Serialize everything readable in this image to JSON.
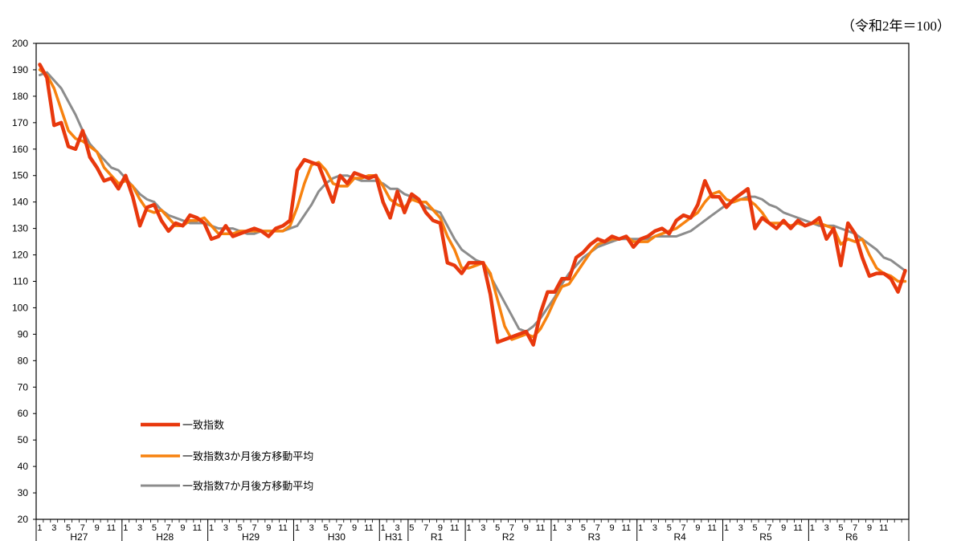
{
  "unit_note": "（令和2年＝100）",
  "chart_data": {
    "type": "line",
    "unit": "（令和2年＝100）",
    "ylim": [
      20,
      200
    ],
    "y_ticks": [
      20,
      30,
      40,
      50,
      60,
      70,
      80,
      90,
      100,
      110,
      120,
      130,
      140,
      150,
      160,
      170,
      180,
      190,
      200
    ],
    "month_ticks": [
      [
        "1",
        "3",
        "5",
        "7",
        "9",
        "11"
      ],
      [
        "1",
        "3",
        "5",
        "7",
        "9",
        "11"
      ],
      [
        "1",
        "3",
        "5",
        "7",
        "9",
        "11"
      ],
      [
        "1",
        "3",
        "5",
        "7",
        "9",
        "11"
      ],
      [
        "1",
        "3"
      ],
      [
        "5",
        "7",
        "9",
        "11"
      ],
      [
        "1",
        "3",
        "5",
        "7",
        "9",
        "11"
      ],
      [
        "1",
        "3",
        "5",
        "7",
        "9",
        "11"
      ],
      [
        "1",
        "3",
        "5",
        "7",
        "9",
        "11"
      ],
      [
        "1",
        "3",
        "5",
        "7",
        "9",
        "11"
      ],
      [
        "1",
        "3",
        "5",
        "7",
        "9",
        "11"
      ]
    ],
    "year_labels": [
      "H27",
      "H28",
      "H29",
      "H30",
      "H31",
      "R1",
      "R2",
      "R3",
      "R4",
      "R5",
      "R6"
    ],
    "year_months": [
      12,
      12,
      12,
      12,
      4,
      8,
      12,
      12,
      12,
      12,
      12
    ],
    "grid": false,
    "legend_position": "bottom-left",
    "colors": {
      "s1": "#e8380d",
      "s2": "#f7820f",
      "s3": "#8c8c8c"
    },
    "series": [
      {
        "name": "一致指数",
        "values": [
          192,
          187,
          169,
          170,
          161,
          160,
          167,
          157,
          153,
          148,
          149,
          145,
          150,
          142,
          131,
          138,
          139,
          133,
          129,
          132,
          131,
          135,
          134,
          132,
          126,
          127,
          131,
          127,
          128,
          129,
          130,
          129,
          127,
          130,
          131,
          133,
          152,
          156,
          155,
          154,
          147,
          140,
          150,
          147,
          151,
          150,
          149,
          150,
          140,
          134,
          144,
          136,
          143,
          141,
          136,
          133,
          132,
          117,
          116,
          113,
          117,
          117,
          117,
          105,
          87,
          88,
          89,
          90,
          91,
          86,
          98,
          106,
          106,
          111,
          111,
          119,
          121,
          124,
          126,
          125,
          127,
          126,
          127,
          123,
          126,
          127,
          129,
          130,
          128,
          133,
          135,
          134,
          139,
          148,
          142,
          142,
          138,
          141,
          143,
          145,
          130,
          134,
          132,
          130,
          133,
          130,
          133,
          131,
          132,
          134,
          126,
          130,
          116,
          132,
          128,
          119,
          112,
          113,
          113,
          111,
          106,
          114
        ]
      },
      {
        "name": "一致指数3か月後方移動平均",
        "values": [
          190,
          188,
          183,
          175,
          167,
          164,
          163,
          161,
          159,
          153,
          150,
          147,
          148,
          146,
          141,
          137,
          136,
          137,
          134,
          131,
          131,
          133,
          133,
          134,
          131,
          128,
          128,
          128,
          129,
          129,
          129,
          129,
          129,
          129,
          129,
          131,
          138,
          147,
          154,
          155,
          152,
          147,
          146,
          146,
          149,
          149,
          150,
          150,
          146,
          141,
          139,
          138,
          141,
          140,
          140,
          137,
          134,
          127,
          122,
          115,
          115,
          116,
          117,
          113,
          103,
          93,
          88,
          89,
          90,
          89,
          92,
          97,
          103,
          108,
          109,
          113,
          117,
          121,
          124,
          125,
          126,
          126,
          127,
          125,
          125,
          125,
          127,
          128,
          129,
          130,
          132,
          134,
          136,
          140,
          143,
          144,
          141,
          140,
          141,
          141,
          139,
          136,
          132,
          132,
          132,
          131,
          132,
          131,
          132,
          132,
          131,
          130,
          124,
          126,
          125,
          126,
          120,
          115,
          113,
          112,
          110,
          110
        ]
      },
      {
        "name": "一致指数7か月後方移動平均",
        "values": [
          188,
          189,
          186,
          183,
          178,
          173,
          167,
          162,
          159,
          156,
          153,
          152,
          149,
          146,
          143,
          141,
          140,
          137,
          135,
          134,
          133,
          132,
          132,
          132,
          131,
          130,
          130,
          130,
          129,
          128,
          128,
          129,
          129,
          129,
          129,
          130,
          131,
          135,
          139,
          144,
          147,
          149,
          150,
          150,
          149,
          148,
          148,
          148,
          147,
          145,
          145,
          143,
          142,
          140,
          138,
          137,
          136,
          131,
          126,
          122,
          120,
          118,
          117,
          112,
          107,
          102,
          97,
          92,
          91,
          93,
          96,
          100,
          104,
          109,
          113,
          116,
          119,
          121,
          123,
          124,
          125,
          126,
          126,
          126,
          126,
          126,
          127,
          127,
          127,
          127,
          128,
          129,
          131,
          133,
          135,
          137,
          139,
          140,
          141,
          142,
          142,
          141,
          139,
          138,
          136,
          135,
          134,
          133,
          132,
          131,
          131,
          131,
          130,
          129,
          128,
          126,
          124,
          122,
          119,
          118,
          116,
          114
        ]
      }
    ]
  }
}
